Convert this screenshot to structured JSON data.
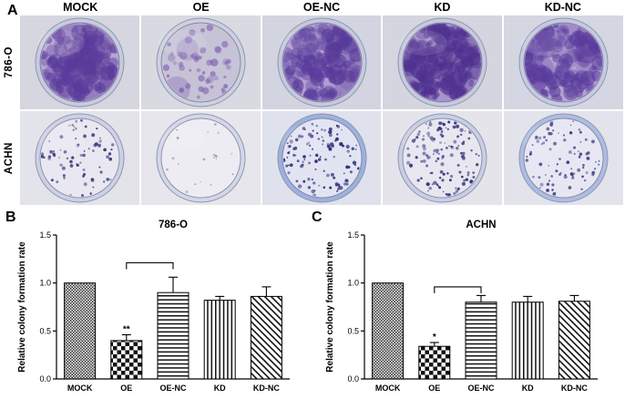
{
  "panels": {
    "a": "A",
    "b": "B",
    "c": "C"
  },
  "panelA": {
    "column_headers": [
      "MOCK",
      "OE",
      "OE-NC",
      "KD",
      "KD-NC"
    ],
    "rows": [
      {
        "label": "786-O",
        "dishes": [
          {
            "condition": "MOCK",
            "bg": "#d6d6e0",
            "rim": "#c7cbdd",
            "base": "#b5a5d2",
            "colony": "#5a3a9a",
            "count": 130,
            "rmin": 2.5,
            "rmax": 9.0,
            "op": 0.5,
            "big": 10
          },
          {
            "condition": "OE",
            "bg": "#d9d9e1",
            "rim": "#cdd0de",
            "base": "#c7c3d6",
            "colony": "#7a5ab0",
            "count": 50,
            "rmin": 1.5,
            "rmax": 4.5,
            "op": 0.55,
            "big": 2
          },
          {
            "condition": "OE-NC",
            "bg": "#d2d4e0",
            "rim": "#c5c9dc",
            "base": "#b0a0d0",
            "colony": "#583a9a",
            "count": 120,
            "rmin": 2.5,
            "rmax": 9.5,
            "op": 0.5,
            "big": 9
          },
          {
            "condition": "KD",
            "bg": "#d5d5df",
            "rim": "#c6cadd",
            "base": "#a894cc",
            "colony": "#4f3190",
            "count": 135,
            "rmin": 2.5,
            "rmax": 10.0,
            "op": 0.55,
            "big": 10
          },
          {
            "condition": "KD-NC",
            "bg": "#d4d6e2",
            "rim": "#c6cade",
            "base": "#b3a3d2",
            "colony": "#5a3b9c",
            "count": 125,
            "rmin": 2.5,
            "rmax": 9.0,
            "op": 0.5,
            "big": 9
          }
        ]
      },
      {
        "label": "ACHN",
        "dishes": [
          {
            "condition": "MOCK",
            "bg": "#e3e3ea",
            "rim": "#ccd2e4",
            "base": "#e9e8f1",
            "colony": "#3c3c82",
            "count": 75,
            "rmin": 0.8,
            "rmax": 2.0,
            "op": 0.8,
            "big": 0
          },
          {
            "condition": "OE",
            "bg": "#e6e6ec",
            "rim": "#d3d7e6",
            "base": "#edecf2",
            "colony": "#6c6ca4",
            "count": 20,
            "rmin": 0.7,
            "rmax": 1.5,
            "op": 0.6,
            "big": 0
          },
          {
            "condition": "OE-NC",
            "bg": "#dfe1ec",
            "rim": "#9db1dc",
            "base": "#e2e4f2",
            "colony": "#34347c",
            "count": 115,
            "rmin": 0.8,
            "rmax": 2.2,
            "op": 0.85,
            "big": 0
          },
          {
            "condition": "KD",
            "bg": "#e4e4ea",
            "rim": "#c8cfe3",
            "base": "#e8e7f0",
            "colony": "#383880",
            "count": 125,
            "rmin": 0.8,
            "rmax": 2.2,
            "op": 0.85,
            "big": 0
          },
          {
            "condition": "KD-NC",
            "bg": "#e2e3eb",
            "rim": "#aebddf",
            "base": "#e6e7f2",
            "colony": "#3e3e86",
            "count": 85,
            "rmin": 0.8,
            "rmax": 2.0,
            "op": 0.8,
            "big": 0
          }
        ]
      }
    ]
  },
  "chart_data": [
    {
      "type": "bar",
      "panel": "B",
      "title": "786-O",
      "xlabel": "",
      "ylabel": "Relative colony formation rate",
      "ylim": [
        0,
        1.5
      ],
      "yticks": [
        0.0,
        0.5,
        1.0,
        1.5
      ],
      "grid": false,
      "legend": "none",
      "categories": [
        "MOCK",
        "OE",
        "OE-NC",
        "KD",
        "KD-NC"
      ],
      "values": [
        1.0,
        0.4,
        0.9,
        0.82,
        0.86
      ],
      "errors": [
        0,
        0.06,
        0.16,
        0.04,
        0.1
      ],
      "significance": [
        "",
        "**",
        "",
        "",
        ""
      ],
      "bracket": {
        "from": "OE",
        "to": "OE-NC",
        "y": 1.21
      },
      "patterns": [
        "fine-checker",
        "checkerboard",
        "horizontal-lines",
        "vertical-lines",
        "diagonal-lines"
      ]
    },
    {
      "type": "bar",
      "panel": "C",
      "title": "ACHN",
      "xlabel": "",
      "ylabel": "Relative colony formation rate",
      "ylim": [
        0,
        1.5
      ],
      "yticks": [
        0.0,
        0.5,
        1.0,
        1.5
      ],
      "grid": false,
      "legend": "none",
      "categories": [
        "MOCK",
        "OE",
        "OE-NC",
        "KD",
        "KD-NC"
      ],
      "values": [
        1.0,
        0.34,
        0.8,
        0.8,
        0.81
      ],
      "errors": [
        0,
        0.04,
        0.07,
        0.06,
        0.06
      ],
      "significance": [
        "",
        "*",
        "",
        "",
        ""
      ],
      "bracket": {
        "from": "OE",
        "to": "OE-NC",
        "y": 0.96
      },
      "patterns": [
        "fine-checker",
        "checkerboard",
        "horizontal-lines",
        "vertical-lines",
        "diagonal-lines"
      ]
    }
  ]
}
